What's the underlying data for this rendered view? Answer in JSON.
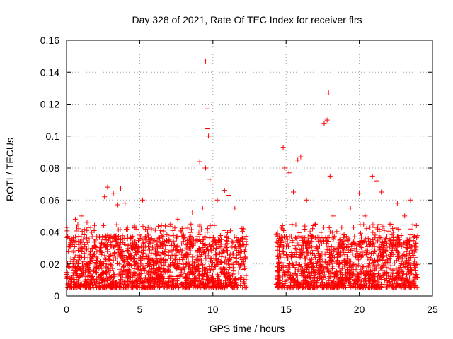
{
  "chart_data": {
    "type": "scatter",
    "title": "Day 328 of 2021, Rate Of TEC Index for receiver flrs",
    "xlabel": "GPS time / hours",
    "ylabel": "ROTI / TECUs",
    "xlim": [
      0,
      25
    ],
    "ylim": [
      0,
      0.16
    ],
    "x_ticks": [
      0,
      5,
      10,
      15,
      20,
      25
    ],
    "y_ticks": [
      0,
      0.02,
      0.04,
      0.06,
      0.08,
      0.1,
      0.12,
      0.14,
      0.16
    ],
    "x_tick_labels": [
      "0",
      "5",
      "10",
      "15",
      "20",
      "25"
    ],
    "y_tick_labels": [
      "0",
      "0.02",
      "0.04",
      "0.06",
      "0.08",
      "0.1",
      "0.12",
      "0.14",
      "0.16"
    ],
    "grid": true,
    "marker": "+",
    "color": "#ff0000",
    "series": [
      {
        "name": "ROTI",
        "coverage_hours": [
          [
            0.0,
            12.3
          ],
          [
            14.3,
            24.0
          ]
        ],
        "typical_range": [
          0.005,
          0.03
        ],
        "x": [
          0.2,
          0.6,
          1.0,
          1.4,
          2.0,
          2.6,
          2.8,
          3.2,
          3.5,
          3.7,
          4.0,
          4.5,
          5.2,
          5.8,
          6.4,
          7.1,
          7.6,
          8.0,
          8.6,
          9.1,
          9.3,
          9.5,
          9.6,
          9.7,
          9.6,
          9.5,
          9.8,
          10.3,
          10.8,
          11.1,
          11.5,
          12.1,
          14.4,
          14.8,
          14.9,
          15.2,
          15.5,
          15.8,
          16.0,
          16.4,
          17.0,
          17.6,
          17.8,
          17.9,
          18.0,
          18.2,
          18.8,
          19.4,
          20.0,
          20.4,
          20.9,
          21.2,
          21.5,
          22.1,
          22.6,
          23.1,
          23.5,
          23.9
        ],
        "y": [
          0.036,
          0.048,
          0.05,
          0.046,
          0.035,
          0.062,
          0.068,
          0.064,
          0.057,
          0.067,
          0.058,
          0.03,
          0.06,
          0.042,
          0.04,
          0.045,
          0.048,
          0.038,
          0.052,
          0.084,
          0.055,
          0.147,
          0.117,
          0.1,
          0.105,
          0.08,
          0.073,
          0.06,
          0.066,
          0.063,
          0.055,
          0.042,
          0.04,
          0.093,
          0.08,
          0.077,
          0.065,
          0.085,
          0.087,
          0.06,
          0.045,
          0.108,
          0.11,
          0.127,
          0.075,
          0.05,
          0.043,
          0.055,
          0.064,
          0.05,
          0.075,
          0.072,
          0.065,
          0.045,
          0.058,
          0.05,
          0.06,
          0.044
        ]
      }
    ]
  }
}
